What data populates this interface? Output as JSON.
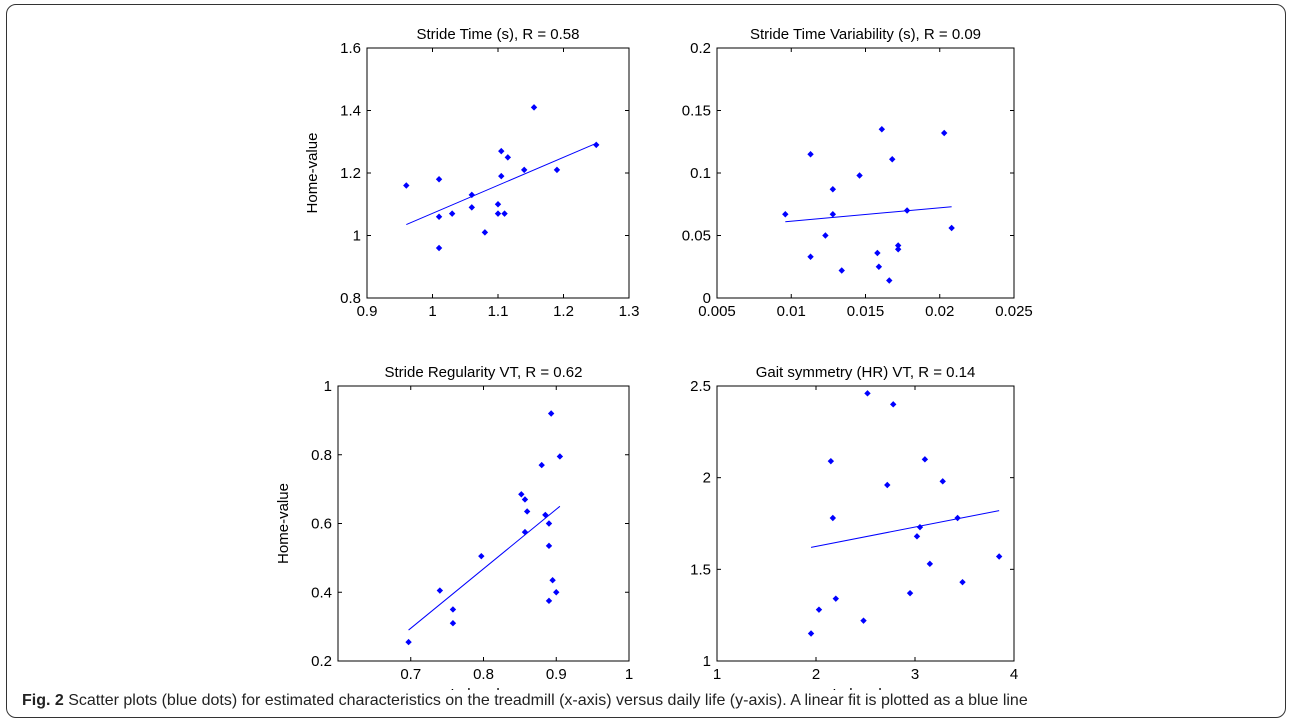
{
  "caption": {
    "label": "Fig. 2",
    "text": " Scatter plots (blue dots) for estimated characteristics on the treadmill (x-axis) versus daily life (y-axis). A linear fit is plotted as a blue line"
  },
  "colors": {
    "marker": "#0000ff",
    "fit_line": "#0000ff",
    "axes": "#000000"
  },
  "chart_data": [
    {
      "type": "scatter",
      "title": "Stride Time (s), R = 0.58",
      "xlabel": "",
      "ylabel": "Home-value",
      "xlim": [
        0.9,
        1.3
      ],
      "ylim": [
        0.8,
        1.6
      ],
      "xticks": [
        "0.9",
        "1",
        "1.1",
        "1.2",
        "1.3"
      ],
      "yticks": [
        "0.8",
        "1",
        "1.2",
        "1.4",
        "1.6"
      ],
      "points": [
        [
          0.96,
          1.16
        ],
        [
          1.01,
          1.18
        ],
        [
          1.01,
          1.06
        ],
        [
          1.01,
          0.96
        ],
        [
          1.03,
          1.07
        ],
        [
          1.06,
          1.13
        ],
        [
          1.06,
          1.09
        ],
        [
          1.08,
          1.01
        ],
        [
          1.1,
          1.1
        ],
        [
          1.1,
          1.07
        ],
        [
          1.105,
          1.27
        ],
        [
          1.105,
          1.19
        ],
        [
          1.11,
          1.07
        ],
        [
          1.115,
          1.25
        ],
        [
          1.14,
          1.21
        ],
        [
          1.155,
          1.41
        ],
        [
          1.19,
          1.21
        ],
        [
          1.25,
          1.29
        ]
      ],
      "fit": [
        [
          0.96,
          1.035
        ],
        [
          1.25,
          1.295
        ]
      ]
    },
    {
      "type": "scatter",
      "title": "Stride Time Variability (s), R = 0.09",
      "xlabel": "",
      "ylabel": "",
      "xlim": [
        0.005,
        0.025
      ],
      "ylim": [
        0,
        0.2
      ],
      "xticks": [
        "0.005",
        "0.01",
        "0.015",
        "0.02",
        "0.025"
      ],
      "yticks": [
        "0",
        "0.05",
        "0.1",
        "0.15",
        "0.2"
      ],
      "points": [
        [
          0.0096,
          0.067
        ],
        [
          0.0113,
          0.115
        ],
        [
          0.0113,
          0.033
        ],
        [
          0.0123,
          0.05
        ],
        [
          0.0128,
          0.087
        ],
        [
          0.0128,
          0.067
        ],
        [
          0.0134,
          0.022
        ],
        [
          0.0146,
          0.098
        ],
        [
          0.0158,
          0.036
        ],
        [
          0.0159,
          0.025
        ],
        [
          0.0161,
          0.135
        ],
        [
          0.0166,
          0.014
        ],
        [
          0.0168,
          0.111
        ],
        [
          0.0172,
          0.042
        ],
        [
          0.0172,
          0.039
        ],
        [
          0.0178,
          0.07
        ],
        [
          0.0203,
          0.132
        ],
        [
          0.0208,
          0.056
        ]
      ],
      "fit": [
        [
          0.0096,
          0.061
        ],
        [
          0.0208,
          0.073
        ]
      ]
    },
    {
      "type": "scatter",
      "title": "Stride Regularity VT, R = 0.62",
      "xlabel": "Lab-value",
      "ylabel": "Home-value",
      "xlim": [
        0.6,
        1.0
      ],
      "ylim": [
        0.2,
        1.0
      ],
      "xticks": [
        "0.7",
        "0.8",
        "0.9",
        "1"
      ],
      "xtick_values": [
        0.7,
        0.8,
        0.9,
        1.0
      ],
      "yticks": [
        "0.2",
        "0.4",
        "0.6",
        "0.8",
        "1"
      ],
      "points": [
        [
          0.697,
          0.255
        ],
        [
          0.74,
          0.405
        ],
        [
          0.758,
          0.35
        ],
        [
          0.758,
          0.31
        ],
        [
          0.797,
          0.505
        ],
        [
          0.852,
          0.685
        ],
        [
          0.857,
          0.67
        ],
        [
          0.857,
          0.575
        ],
        [
          0.86,
          0.635
        ],
        [
          0.88,
          0.77
        ],
        [
          0.885,
          0.625
        ],
        [
          0.89,
          0.6
        ],
        [
          0.89,
          0.535
        ],
        [
          0.89,
          0.375
        ],
        [
          0.893,
          0.92
        ],
        [
          0.895,
          0.435
        ],
        [
          0.9,
          0.4
        ],
        [
          0.905,
          0.795
        ]
      ],
      "fit": [
        [
          0.697,
          0.29
        ],
        [
          0.905,
          0.65
        ]
      ]
    },
    {
      "type": "scatter",
      "title": "Gait symmetry (HR) VT, R = 0.14",
      "xlabel": "Lab-value",
      "ylabel": "",
      "xlim": [
        1,
        4
      ],
      "ylim": [
        1,
        2.5
      ],
      "xticks": [
        "1",
        "2",
        "3",
        "4"
      ],
      "yticks": [
        "1",
        "1.5",
        "2",
        "2.5"
      ],
      "points": [
        [
          1.95,
          1.15
        ],
        [
          2.03,
          1.28
        ],
        [
          2.15,
          2.09
        ],
        [
          2.17,
          1.78
        ],
        [
          2.2,
          1.34
        ],
        [
          2.48,
          1.22
        ],
        [
          2.52,
          2.46
        ],
        [
          2.72,
          1.96
        ],
        [
          2.78,
          2.4
        ],
        [
          2.95,
          1.37
        ],
        [
          3.02,
          1.68
        ],
        [
          3.05,
          1.73
        ],
        [
          3.1,
          2.1
        ],
        [
          3.15,
          1.53
        ],
        [
          3.28,
          1.98
        ],
        [
          3.43,
          1.78
        ],
        [
          3.48,
          1.43
        ],
        [
          3.85,
          1.57
        ]
      ],
      "fit": [
        [
          1.95,
          1.62
        ],
        [
          3.85,
          1.82
        ]
      ]
    }
  ]
}
